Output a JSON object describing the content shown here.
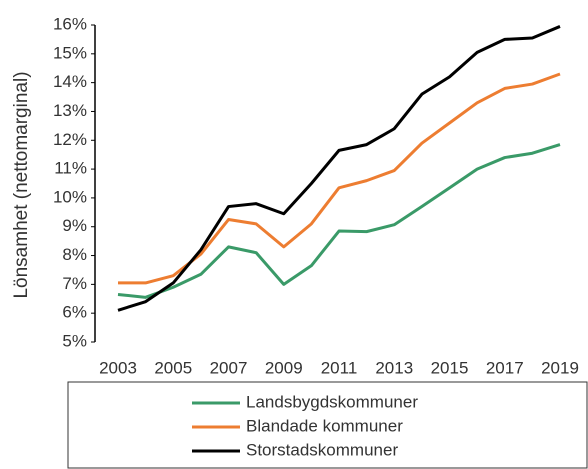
{
  "chart_data": {
    "type": "line",
    "y_label": "Lönsamhet (nettomarginal)",
    "x": [
      2003,
      2004,
      2005,
      2006,
      2007,
      2008,
      2009,
      2010,
      2011,
      2012,
      2013,
      2014,
      2015,
      2016,
      2017,
      2018,
      2019
    ],
    "xlim": [
      2003,
      2019
    ],
    "xticks": [
      2003,
      2005,
      2007,
      2009,
      2011,
      2013,
      2015,
      2017,
      2019
    ],
    "ylim": [
      5,
      16
    ],
    "yticks": [
      {
        "value": 5,
        "label": "5%"
      },
      {
        "value": 6,
        "label": "6%"
      },
      {
        "value": 7,
        "label": "7%"
      },
      {
        "value": 8,
        "label": "8%"
      },
      {
        "value": 9,
        "label": "9%"
      },
      {
        "value": 10,
        "label": "10%"
      },
      {
        "value": 11,
        "label": "11%"
      },
      {
        "value": 12,
        "label": "12%"
      },
      {
        "value": 13,
        "label": "13%"
      },
      {
        "value": 14,
        "label": "14%"
      },
      {
        "value": 15,
        "label": "15%"
      },
      {
        "value": 16,
        "label": "16%"
      }
    ],
    "grid": false,
    "legend": "bottom",
    "series": [
      {
        "name": "Landsbygdskommuner",
        "color": "#3a9a68",
        "values": [
          6.65,
          6.55,
          6.9,
          7.35,
          8.3,
          8.1,
          7.0,
          7.65,
          8.85,
          8.83,
          9.07,
          9.7,
          10.35,
          11.0,
          11.4,
          11.55,
          11.85
        ]
      },
      {
        "name": "Blandade kommuner",
        "color": "#ed7d31",
        "values": [
          7.05,
          7.05,
          7.3,
          8.05,
          9.25,
          9.1,
          8.3,
          9.1,
          10.35,
          10.6,
          10.95,
          11.9,
          12.6,
          13.3,
          13.8,
          13.95,
          14.3
        ]
      },
      {
        "name": "Storstadskommuner",
        "color": "#000000",
        "values": [
          6.1,
          6.4,
          7.05,
          8.2,
          9.7,
          9.8,
          9.45,
          10.5,
          11.65,
          11.85,
          12.4,
          13.6,
          14.2,
          15.05,
          15.5,
          15.55,
          15.95
        ]
      }
    ]
  }
}
